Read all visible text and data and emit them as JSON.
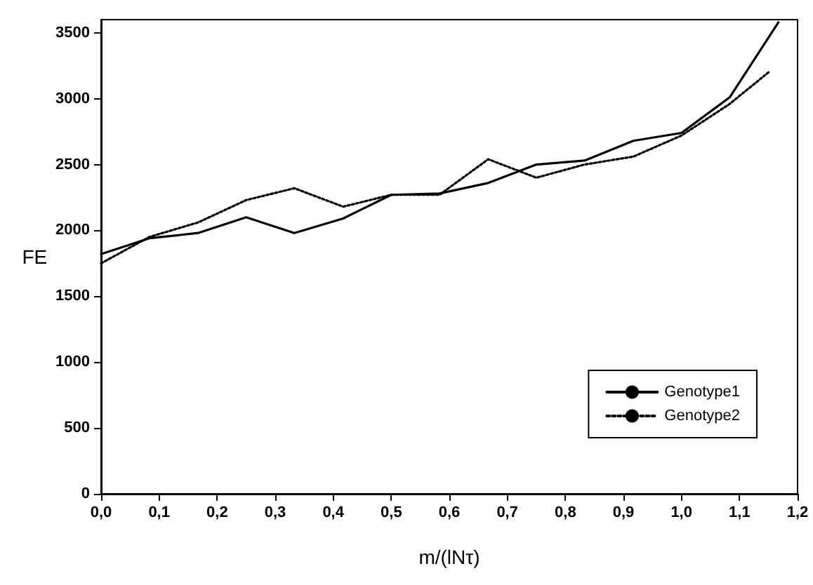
{
  "chart_data": {
    "type": "line",
    "xlabel": "m/(lNτ)",
    "ylabel": "FE",
    "series": [
      {
        "name": "Genotype1",
        "color": "#000000",
        "line_style": "solid",
        "x": [
          0,
          0.083,
          0.167,
          0.25,
          0.333,
          0.417,
          0.5,
          0.583,
          0.667,
          0.75,
          0.833,
          0.917,
          1,
          1.083,
          1.167
        ],
        "values": [
          1820,
          1940,
          1980,
          2100,
          1980,
          2090,
          2270,
          2280,
          2360,
          2500,
          2530,
          2680,
          2740,
          3010,
          3580
        ]
      },
      {
        "name": "Genotype2",
        "color": "#000000",
        "line_style": "dotted",
        "x": [
          0,
          0.083,
          0.167,
          0.25,
          0.333,
          0.417,
          0.5,
          0.583,
          0.667,
          0.75,
          0.833,
          0.917,
          1,
          1.083,
          1.15
        ],
        "values": [
          1750,
          1950,
          2060,
          2230,
          2320,
          2180,
          2270,
          2270,
          2540,
          2400,
          2500,
          2560,
          2720,
          2960,
          3200
        ]
      }
    ],
    "xlim": [
      0,
      1.2
    ],
    "xticks": [
      {
        "value": 0,
        "label": "0,0"
      },
      {
        "value": 0.1,
        "label": "0,1"
      },
      {
        "value": 0.2,
        "label": "0,2"
      },
      {
        "value": 0.3,
        "label": "0,3"
      },
      {
        "value": 0.4,
        "label": "0,4"
      },
      {
        "value": 0.5,
        "label": "0,5"
      },
      {
        "value": 0.6,
        "label": "0,6"
      },
      {
        "value": 0.7,
        "label": "0,7"
      },
      {
        "value": 0.8,
        "label": "0,8"
      },
      {
        "value": 0.9,
        "label": "0,9"
      },
      {
        "value": 1,
        "label": "1,0"
      },
      {
        "value": 1.1,
        "label": "1,1"
      },
      {
        "value": 1.2,
        "label": "1,2"
      }
    ],
    "ylim": [
      0,
      3600
    ],
    "yticks": [
      0,
      500,
      1000,
      1500,
      2000,
      2500,
      3000,
      3500
    ],
    "grid": false,
    "legend": "bottom right",
    "marker": "none"
  }
}
